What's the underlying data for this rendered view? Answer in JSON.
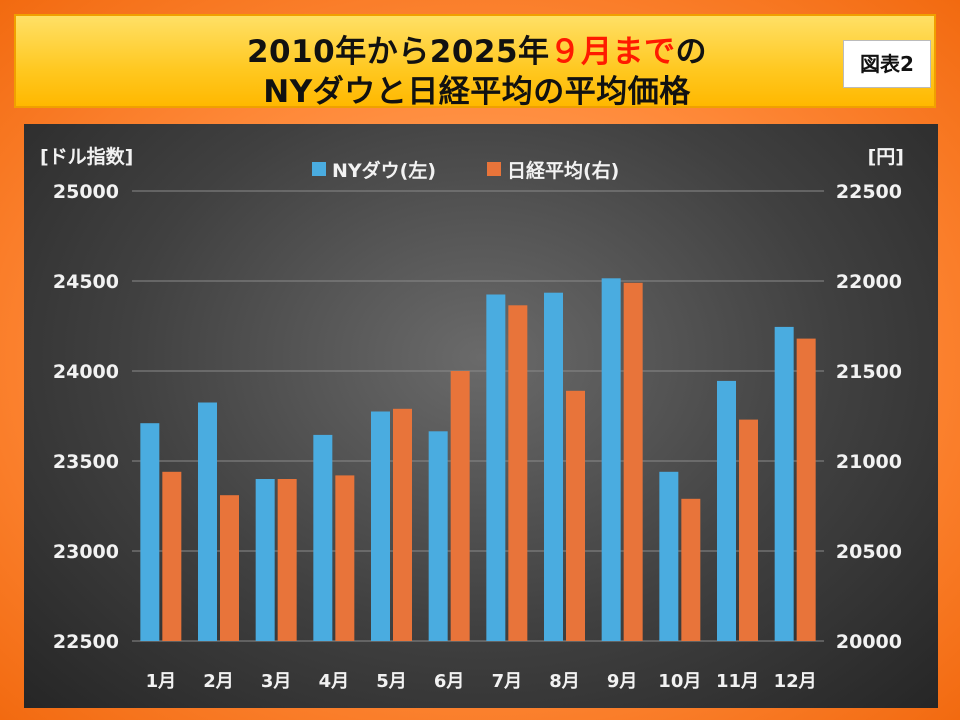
{
  "header": {
    "title_line1_before": "2010年から2025年",
    "title_line1_highlight": "９月まで",
    "title_line1_after": "の",
    "title_line2": "NYダウと日経平均の平均価格",
    "badge": "図表2"
  },
  "colors": {
    "ny_dow": "#4aace0",
    "nikkei": "#e8743a",
    "highlight": "#ff1a00"
  },
  "chart_data": {
    "type": "bar",
    "categories": [
      "1月",
      "2月",
      "3月",
      "4月",
      "5月",
      "6月",
      "7月",
      "8月",
      "9月",
      "10月",
      "11月",
      "12月"
    ],
    "series": [
      {
        "name": "NYダウ(左)",
        "axis": "left",
        "values": [
          23710,
          23825,
          23400,
          23645,
          23775,
          23665,
          24425,
          24435,
          24515,
          23440,
          23945,
          24245
        ]
      },
      {
        "name": "日経平均(右)",
        "axis": "right",
        "values": [
          20940,
          20810,
          20900,
          20920,
          21290,
          21500,
          21865,
          21390,
          21990,
          20790,
          21230,
          21680
        ]
      }
    ],
    "yleft": {
      "label": "[ドル指数]",
      "range": [
        22500,
        25000
      ],
      "ticks": [
        22500,
        23000,
        23500,
        24000,
        24500,
        25000
      ]
    },
    "yright": {
      "label": "[円]",
      "range": [
        20000,
        22500
      ],
      "ticks": [
        20000,
        20500,
        21000,
        21500,
        22000,
        22500
      ]
    },
    "legend_position": "top-center",
    "grid": true
  }
}
